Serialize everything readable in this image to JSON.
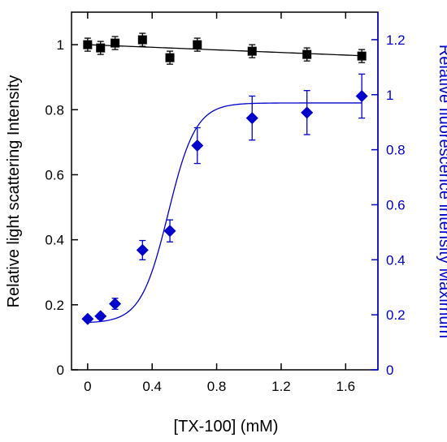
{
  "chart_data": {
    "type": "scatter",
    "xlabel": "[TX-100] (mM)",
    "ylabel_left": "Relative light scattering Intensity",
    "ylabel_right": "Relative fluorescence intensity Maximum",
    "xlim": [
      -0.1,
      1.8
    ],
    "ylim_left": [
      0,
      1.1
    ],
    "ylim_right": [
      0,
      1.3
    ],
    "x_ticks": [
      0,
      0.4,
      0.8,
      1.2,
      1.6
    ],
    "x_tick_labels": [
      "0",
      "0.4",
      "0.8",
      "1.2",
      "1.6"
    ],
    "y_left_ticks": [
      0,
      0.2,
      0.4,
      0.6,
      0.8,
      1
    ],
    "y_left_tick_labels": [
      "0",
      "0.2",
      "0.4",
      "0.6",
      "0.8",
      "1"
    ],
    "y_right_ticks": [
      0,
      0.2,
      0.4,
      0.6,
      0.8,
      1,
      1.2
    ],
    "y_right_tick_labels": [
      "0",
      "0.2",
      "0.4",
      "0.6",
      "0.8",
      "1",
      "1.2"
    ],
    "grid": false,
    "colors": {
      "scattering": "#000000",
      "fluorescence": "#0000cc"
    },
    "series": [
      {
        "axis": "left",
        "marker": "square",
        "x": [
          0,
          0.08,
          0.17,
          0.34,
          0.51,
          0.68,
          1.02,
          1.36,
          1.7
        ],
        "y": [
          1.0,
          0.99,
          1.005,
          1.015,
          0.96,
          1.0,
          0.98,
          0.97,
          0.965
        ],
        "err": [
          0.02,
          0.02,
          0.02,
          0.02,
          0.02,
          0.02,
          0.02,
          0.02,
          0.02
        ],
        "fit": {
          "kind": "linear",
          "y0": 1.0,
          "slope": -0.02
        }
      },
      {
        "axis": "right",
        "marker": "diamond",
        "x": [
          0,
          0.08,
          0.17,
          0.34,
          0.51,
          0.68,
          1.02,
          1.36,
          1.7
        ],
        "y": [
          0.185,
          0.195,
          0.24,
          0.435,
          0.505,
          0.815,
          0.915,
          0.935,
          0.995
        ],
        "err": [
          0.0,
          0.01,
          0.02,
          0.035,
          0.04,
          0.065,
          0.08,
          0.08,
          0.08
        ],
        "fit": {
          "kind": "sigmoid",
          "bottom": 0.17,
          "top": 0.97,
          "x0": 0.5,
          "k": 0.085
        }
      }
    ]
  }
}
